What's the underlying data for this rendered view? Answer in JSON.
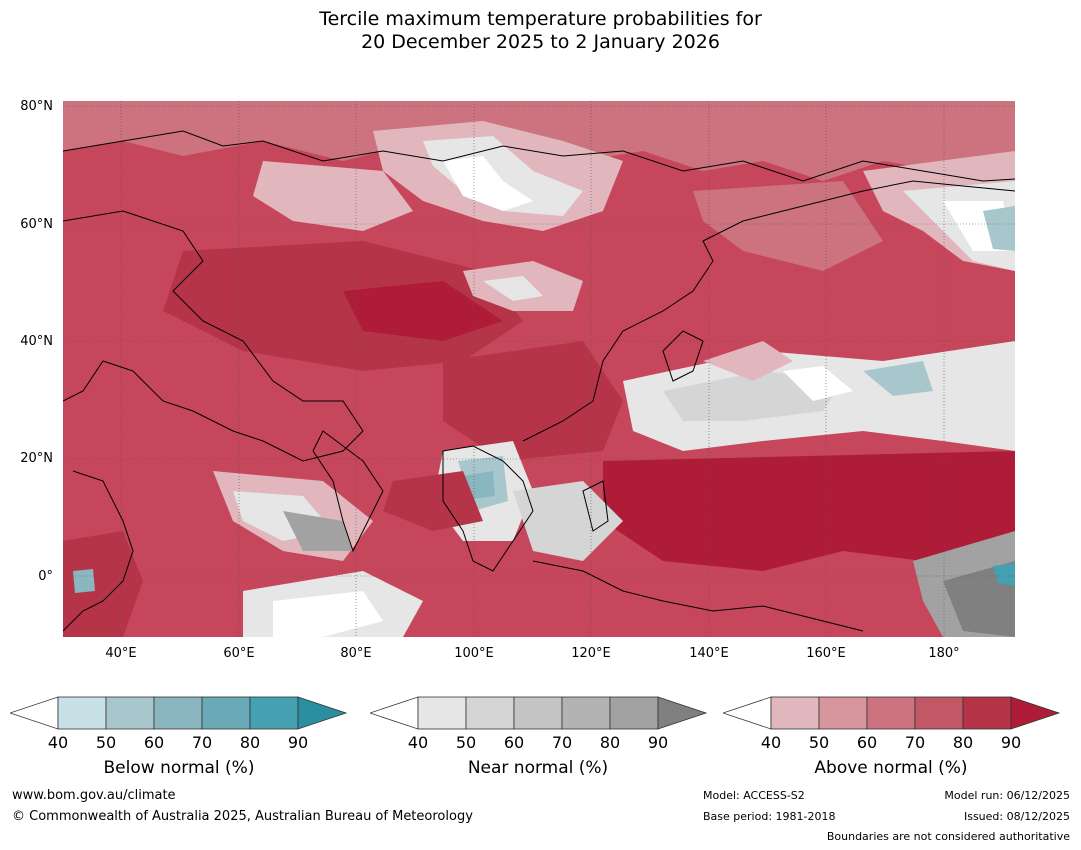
{
  "title": {
    "line1": "Tercile maximum temperature probabilities for",
    "line2": "20 December 2025 to 2 January 2026"
  },
  "map": {
    "lat_labels": [
      "80°N",
      "60°N",
      "40°N",
      "20°N",
      "0°"
    ],
    "lon_labels": [
      "40°E",
      "60°E",
      "80°E",
      "100°E",
      "120°E",
      "140°E",
      "160°E",
      "180°"
    ]
  },
  "colorbars": [
    {
      "title": "Below normal (%)",
      "ticks": [
        "40",
        "50",
        "60",
        "70",
        "80",
        "90"
      ],
      "colors": [
        "#ffffff",
        "#c8e1e7",
        "#a8c7cd",
        "#89b6bf",
        "#6aaab6",
        "#45a0b1",
        "#2b8fa2"
      ]
    },
    {
      "title": "Near normal (%)",
      "ticks": [
        "40",
        "50",
        "60",
        "70",
        "80",
        "90"
      ],
      "colors": [
        "#ffffff",
        "#e6e6e6",
        "#d5d5d5",
        "#c5c5c5",
        "#b3b3b3",
        "#a2a2a2",
        "#808080"
      ]
    },
    {
      "title": "Above normal (%)",
      "ticks": [
        "40",
        "50",
        "60",
        "70",
        "80",
        "90"
      ],
      "colors": [
        "#ffffff",
        "#e1b7bd",
        "#d7959d",
        "#cc737f",
        "#c25766",
        "#b63447",
        "#ae1c38"
      ]
    }
  ],
  "footer": {
    "website": "www.bom.gov.au/climate",
    "copyright": "© Commonwealth of Australia 2025, Australian Bureau of Meteorology",
    "model": "Model: ACCESS-S2",
    "base_period": "Base period: 1981-2018",
    "model_run": "Model run: 06/12/2025",
    "issued": "Issued: 08/12/2025",
    "disclaimer": "Boundaries are not considered authoritative"
  }
}
